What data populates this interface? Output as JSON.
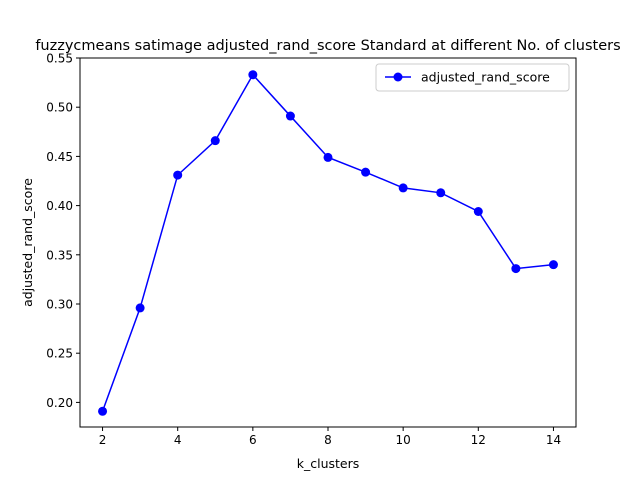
{
  "chart_data": {
    "type": "line",
    "title": "fuzzycmeans satimage adjusted_rand_score Standard at different No. of clusters",
    "xlabel": "k_clusters",
    "ylabel": "adjusted_rand_score",
    "xlim": [
      1.4,
      14.6
    ],
    "ylim": [
      0.175,
      0.55
    ],
    "xticks": [
      2,
      4,
      6,
      8,
      10,
      12,
      14
    ],
    "yticks": [
      0.2,
      0.25,
      0.3,
      0.35,
      0.4,
      0.45,
      0.5,
      0.55
    ],
    "grid": false,
    "legend_position": "top-right",
    "series": [
      {
        "name": "adjusted_rand_score",
        "color": "#0000ff",
        "marker": "circle",
        "x": [
          2,
          3,
          4,
          5,
          6,
          7,
          8,
          9,
          10,
          11,
          12,
          13,
          14
        ],
        "y": [
          0.191,
          0.296,
          0.431,
          0.466,
          0.533,
          0.491,
          0.449,
          0.434,
          0.418,
          0.413,
          0.394,
          0.336,
          0.34
        ]
      }
    ]
  }
}
